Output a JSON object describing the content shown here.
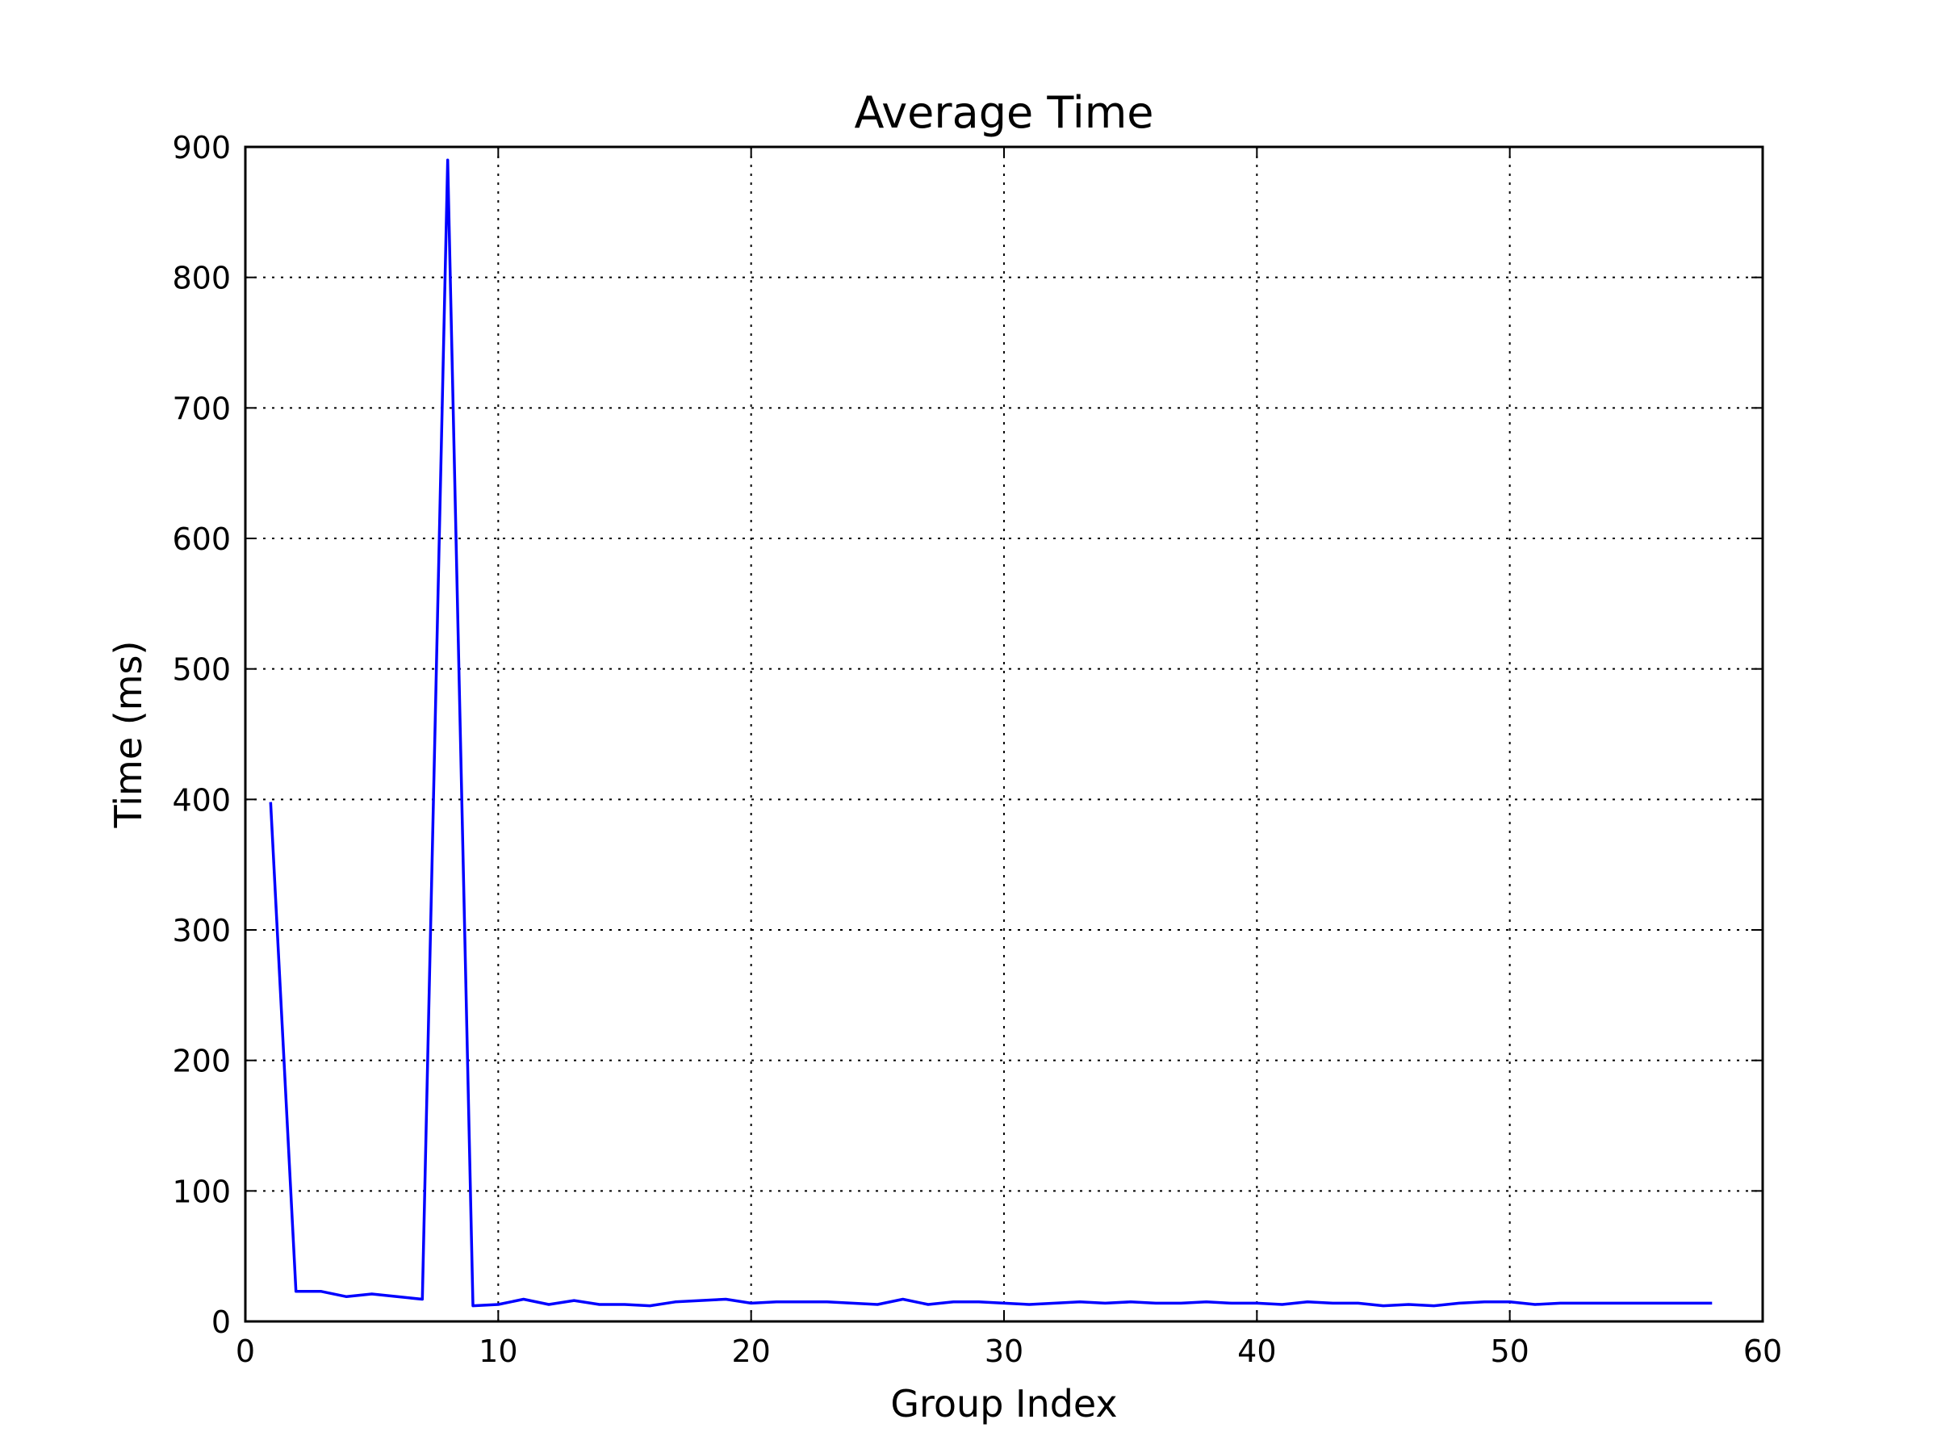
{
  "chart_data": {
    "type": "line",
    "title": "Average Time",
    "xlabel": "Group Index",
    "ylabel": "Time (ms)",
    "xlim": [
      0,
      60
    ],
    "ylim": [
      0,
      900
    ],
    "xticks": [
      0,
      10,
      20,
      30,
      40,
      50,
      60
    ],
    "yticks": [
      0,
      100,
      200,
      300,
      400,
      500,
      600,
      700,
      800,
      900
    ],
    "grid": true,
    "legend": "none",
    "series": [
      {
        "color": "#0000ff",
        "x": [
          1,
          2,
          3,
          4,
          5,
          6,
          7,
          8,
          9,
          10,
          11,
          12,
          13,
          14,
          15,
          16,
          17,
          18,
          19,
          20,
          21,
          22,
          23,
          24,
          25,
          26,
          27,
          28,
          29,
          30,
          31,
          32,
          33,
          34,
          35,
          36,
          37,
          38,
          39,
          40,
          41,
          42,
          43,
          44,
          45,
          46,
          47,
          48,
          49,
          50,
          51,
          52,
          53,
          54,
          55,
          56,
          57,
          58
        ],
        "values": [
          398,
          23,
          23,
          19,
          21,
          19,
          17,
          890,
          12,
          13,
          17,
          13,
          16,
          13,
          13,
          12,
          15,
          16,
          17,
          14,
          15,
          15,
          15,
          14,
          13,
          17,
          13,
          15,
          15,
          14,
          13,
          14,
          15,
          14,
          15,
          14,
          14,
          15,
          14,
          14,
          13,
          15,
          14,
          14,
          12,
          13,
          12,
          14,
          15,
          15,
          13,
          14,
          14,
          14,
          14,
          14,
          14,
          14
        ]
      }
    ]
  }
}
